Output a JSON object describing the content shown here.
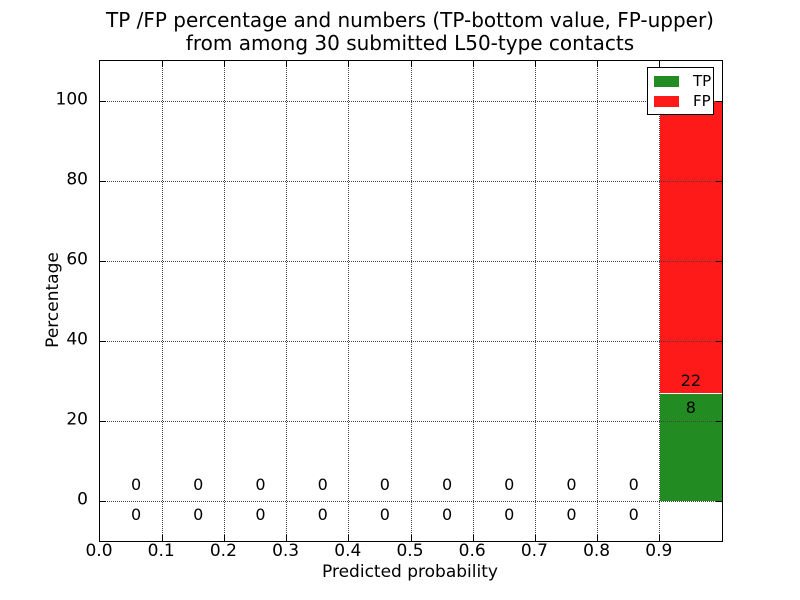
{
  "chart_data": {
    "type": "bar",
    "stacked": true,
    "title_lines": [
      "TP /FP percentage and numbers (TP-bottom value, FP-upper)",
      "from among 30 submitted L50-type contacts"
    ],
    "xlabel": "Predicted probability",
    "ylabel": "Percentage",
    "xlim": [
      0.0,
      1.0
    ],
    "ylim": [
      -10,
      110
    ],
    "xticks": {
      "values": [
        0.0,
        0.1,
        0.2,
        0.3,
        0.4,
        0.5,
        0.6,
        0.7,
        0.8,
        0.9
      ],
      "labels": [
        "0.0",
        "0.1",
        "0.2",
        "0.3",
        "0.4",
        "0.5",
        "0.6",
        "0.7",
        "0.8",
        "0.9"
      ]
    },
    "yticks": {
      "values": [
        0,
        20,
        40,
        60,
        80,
        100
      ],
      "labels": [
        "0",
        "20",
        "40",
        "60",
        "80",
        "100"
      ]
    },
    "grid": {
      "visible": true,
      "style": "dotted",
      "color": "#444444",
      "drawn_above_bars": true
    },
    "total_submitted": 30,
    "bins": {
      "starts": [
        0.0,
        0.1,
        0.2,
        0.3,
        0.4,
        0.5,
        0.6,
        0.7,
        0.8,
        0.9
      ],
      "width": 0.1
    },
    "series": [
      {
        "name": "TP",
        "color": "#228b22",
        "counts": [
          0,
          0,
          0,
          0,
          0,
          0,
          0,
          0,
          0,
          8
        ],
        "percent": [
          0,
          0,
          0,
          0,
          0,
          0,
          0,
          0,
          0,
          26.67
        ]
      },
      {
        "name": "FP",
        "color": "#ff1a1a",
        "counts": [
          0,
          0,
          0,
          0,
          0,
          0,
          0,
          0,
          0,
          22
        ],
        "percent": [
          0,
          0,
          0,
          0,
          0,
          0,
          0,
          0,
          0,
          73.33
        ]
      }
    ],
    "legend": {
      "position": "upper right",
      "entries": [
        {
          "label": "TP",
          "color": "#228b22"
        },
        {
          "label": "FP",
          "color": "#ff1a1a"
        }
      ]
    }
  }
}
